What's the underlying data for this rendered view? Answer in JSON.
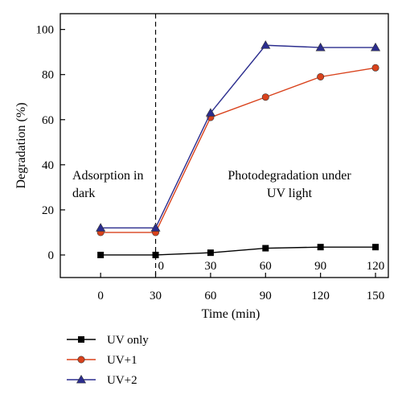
{
  "chart_data": {
    "type": "line",
    "xlabel": "Time (min)",
    "ylabel": "Degradation (%)",
    "x_ticks": [
      "0",
      "30",
      "60",
      "90",
      "120",
      "150"
    ],
    "x_secondary_ticks": [
      "0",
      "30",
      "60",
      "90",
      "120"
    ],
    "ylim": [
      -10,
      107
    ],
    "xlim": [
      -22,
      157
    ],
    "y_ticks": [
      0,
      20,
      40,
      60,
      80,
      100
    ],
    "grid": false,
    "legend_position": "bottom-left, outside plot",
    "divider_x": 30,
    "annotations": [
      {
        "lines": [
          "Adsorption in",
          "dark"
        ]
      },
      {
        "lines": [
          "Photodegradation under",
          "UV light"
        ]
      }
    ],
    "x": [
      0,
      30,
      60,
      90,
      120,
      150
    ],
    "series": [
      {
        "name": "UV only",
        "color": "#000000",
        "marker": "square",
        "values": [
          0,
          0,
          1,
          3,
          3.5,
          3.5
        ]
      },
      {
        "name": "UV+1",
        "color": "#d9421c",
        "marker": "circle",
        "values": [
          10,
          10,
          61,
          70,
          79,
          83
        ]
      },
      {
        "name": "UV+2",
        "color": "#2b2d8e",
        "marker": "triangle",
        "values": [
          12,
          12,
          63,
          93,
          92,
          92
        ]
      }
    ]
  }
}
